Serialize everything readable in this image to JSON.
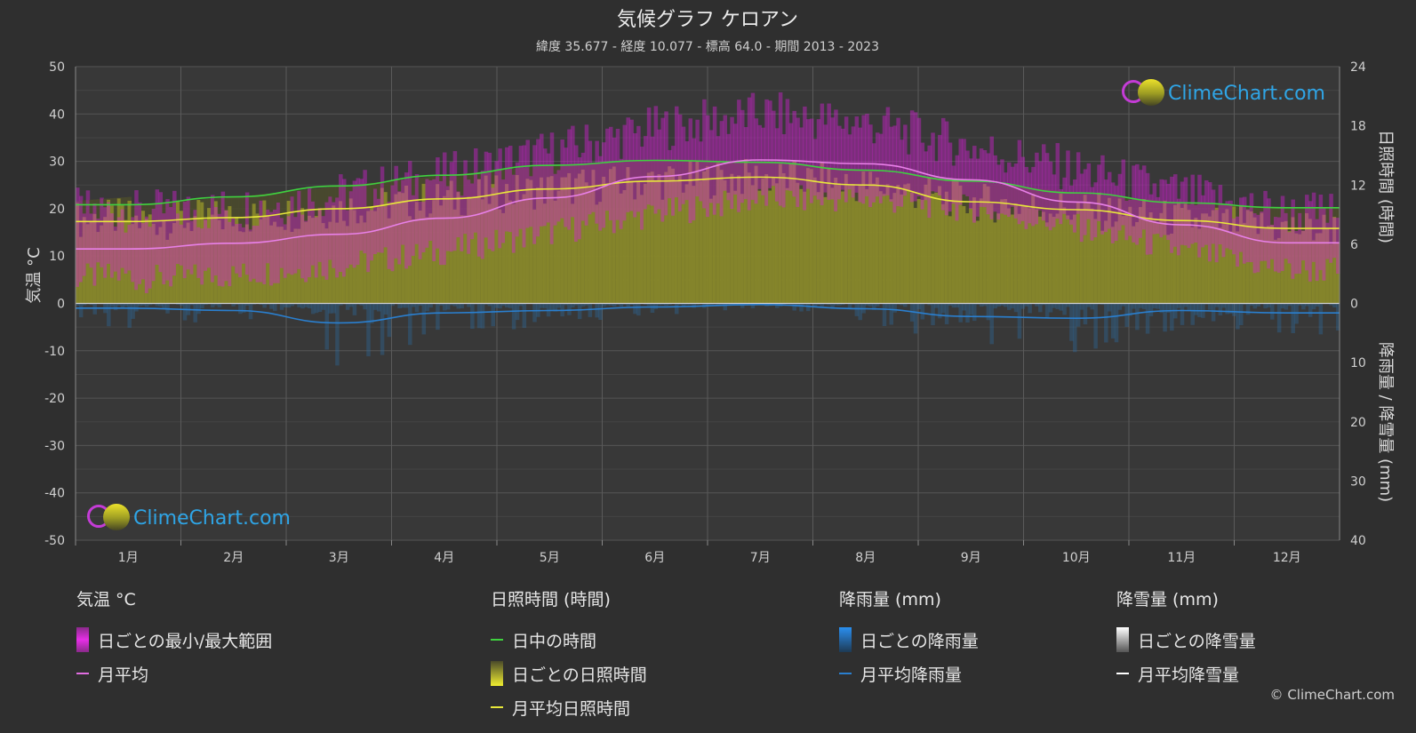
{
  "title": "気候グラフ ケロアン",
  "subtitle": "緯度 35.677 - 経度 10.077 - 標高 64.0 - 期間 2013 - 2023",
  "brand": "ClimeChart.com",
  "copyright": "© ClimeChart.com",
  "colors": {
    "background": "#2f2f2f",
    "daylight": "#3fd13f",
    "sunshine_avg": "#e8e83a",
    "temp_avg": "#e06de0",
    "temp_range": "#d81fd8",
    "rain": "#2a7fcf",
    "snow": "#ffffff"
  },
  "legend": {
    "temperature": {
      "header": "気温 °C",
      "range": "日ごとの最小/最大範囲",
      "avg": "月平均"
    },
    "sunshine": {
      "header": "日照時間 (時間)",
      "daylight": "日中の時間",
      "daily": "日ごとの日照時間",
      "avg": "月平均日照時間"
    },
    "rain": {
      "header": "降雨量 (mm)",
      "daily": "日ごとの降雨量",
      "avg": "月平均降雨量"
    },
    "snow": {
      "header": "降雪量 (mm)",
      "daily": "日ごとの降雪量",
      "avg": "月平均降雪量"
    }
  },
  "chart_data": {
    "type": "line",
    "title": "気候グラフ ケロアン",
    "months": [
      "1月",
      "2月",
      "3月",
      "4月",
      "5月",
      "6月",
      "7月",
      "8月",
      "9月",
      "10月",
      "11月",
      "12月"
    ],
    "y_left": {
      "label": "気温 °C",
      "ticks": [
        50,
        40,
        30,
        20,
        10,
        0,
        -10,
        -20,
        -30,
        -40,
        -50
      ],
      "lim": [
        -50,
        50
      ]
    },
    "y_right_top": {
      "label": "日照時間 (時間)",
      "ticks": [
        24,
        18,
        12,
        6,
        0
      ],
      "lim": [
        0,
        24
      ]
    },
    "y_right_bottom": {
      "label": "降雨量 / 降雪量 (mm)",
      "ticks": [
        0,
        10,
        20,
        30,
        40
      ],
      "lim": [
        0,
        40
      ]
    },
    "grid": true,
    "series": [
      {
        "name": "日中の時間",
        "unit": "hours",
        "values": [
          10.0,
          10.8,
          11.9,
          13.0,
          14.0,
          14.5,
          14.3,
          13.5,
          12.4,
          11.2,
          10.2,
          9.7
        ]
      },
      {
        "name": "月平均日照時間",
        "unit": "hours",
        "values": [
          8.3,
          8.7,
          9.6,
          10.6,
          11.6,
          12.4,
          12.8,
          12.0,
          10.3,
          9.5,
          8.4,
          7.6
        ]
      },
      {
        "name": "月平均",
        "unit": "°C",
        "values": [
          11.5,
          12.7,
          14.6,
          18.0,
          22.3,
          26.8,
          30.3,
          29.5,
          26.1,
          21.4,
          16.6,
          12.8
        ]
      },
      {
        "name": "月平均降雨量",
        "unit": "mm",
        "values": [
          0.8,
          1.2,
          3.3,
          1.6,
          1.2,
          0.6,
          0.2,
          0.9,
          2.2,
          2.5,
          1.2,
          1.6
        ]
      }
    ],
    "temp_range_monthly": {
      "min": [
        5,
        6,
        8,
        11,
        15,
        19,
        22,
        22,
        20,
        16,
        11,
        7
      ],
      "max": [
        19,
        20,
        23,
        27,
        32,
        37,
        40,
        38,
        33,
        28,
        23,
        19
      ]
    }
  }
}
